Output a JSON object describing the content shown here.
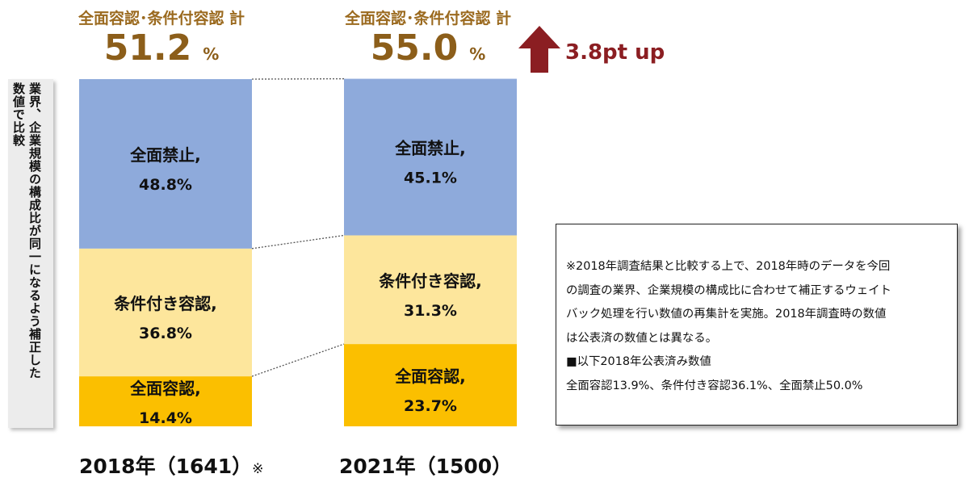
{
  "side_label": {
    "line1": "業界、企業規模の構成比が同一になるよう補正した",
    "line2": "数値で比較"
  },
  "captions": [
    {
      "label": "全面容認･条件付容認 計",
      "value": "51.2",
      "unit": "%"
    },
    {
      "label": "全面容認･条件付容認 計",
      "value": "55.0",
      "unit": "%"
    }
  ],
  "change": {
    "text": "3.8pt up",
    "color": "#8b1e22"
  },
  "chart_data": {
    "type": "bar",
    "stacked": true,
    "ylim": [
      0,
      100
    ],
    "categories": [
      "2018年（1641）",
      "2021年（1500）"
    ],
    "category_note": "※",
    "series": [
      {
        "name": "全面容認",
        "label": "全面容認,",
        "color": "#fbbf00",
        "values": [
          14.4,
          23.7
        ],
        "value_labels": [
          "14.4%",
          "23.7%"
        ]
      },
      {
        "name": "条件付き容認",
        "label": "条件付き容認,",
        "color": "#fde69c",
        "values": [
          36.8,
          31.3
        ],
        "value_labels": [
          "36.8%",
          "31.3%"
        ]
      },
      {
        "name": "全面禁止",
        "label": "全面禁止,",
        "color": "#8eaadb",
        "values": [
          48.8,
          45.1
        ],
        "value_labels": [
          "48.8%",
          "45.1%"
        ]
      }
    ]
  },
  "note": {
    "lines": [
      "※2018年調査結果と比較する上で、2018年時のデータを今回",
      "の調査の業界、企業規模の構成比に合わせて補正するウェイト",
      "バック処理を行い数値の再集計を実施。2018年調査時の数値",
      "は公表済の数値とは異なる。",
      "■以下2018年公表済み数値",
      "全面容認13.9%、条件付き容認36.1%、全面禁止50.0%"
    ]
  }
}
